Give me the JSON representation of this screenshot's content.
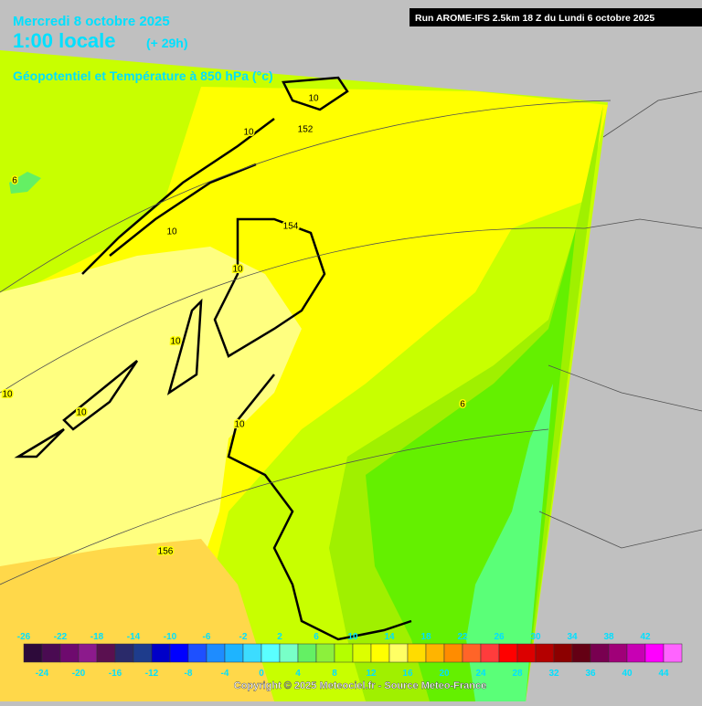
{
  "header": {
    "date": "Mercredi 8 octobre 2025",
    "time": "1:00 locale",
    "offset": "(+ 29h)",
    "subtitle": "Géopotentiel et Température à 850 hPa (°c)",
    "run": "Run AROME-IFS 2.5km 18 Z du Lundi 6 octobre 2025"
  },
  "map": {
    "contour_labels": [
      "10",
      "10",
      "152",
      "6",
      "154",
      "10",
      "10",
      "10",
      "10",
      "10",
      "6",
      "10",
      "156"
    ]
  },
  "scale": {
    "top_labels": [
      -26,
      -22,
      -18,
      -14,
      -10,
      -6,
      -2,
      2,
      6,
      10,
      14,
      18,
      22,
      26,
      30,
      34,
      38,
      42
    ],
    "bottom_labels": [
      -24,
      -20,
      -16,
      -12,
      -8,
      -4,
      0,
      4,
      8,
      12,
      16,
      20,
      24,
      28,
      32,
      36,
      40,
      44
    ],
    "colors": [
      "#2d0a3a",
      "#4a0b52",
      "#6e0a6e",
      "#8c1a8c",
      "#5a1050",
      "#2a2a6a",
      "#1e3c8c",
      "#0000c8",
      "#0000ff",
      "#1e50ff",
      "#1e8cff",
      "#1eb4ff",
      "#3cdcff",
      "#5affff",
      "#78ffc8",
      "#64f064",
      "#8cf03c",
      "#b4ff00",
      "#dcff00",
      "#ffff00",
      "#ffff64",
      "#ffdc00",
      "#ffb400",
      "#ff8c00",
      "#ff6428",
      "#ff3c3c",
      "#ff0000",
      "#dc0000",
      "#b40000",
      "#8c0000",
      "#640014",
      "#780050",
      "#a00078",
      "#c800b4",
      "#ff00ff",
      "#ff64ff"
    ]
  },
  "footer": {
    "copyright": "Copyright © 2025 Meteociel.fr - Source Meteo-France"
  }
}
